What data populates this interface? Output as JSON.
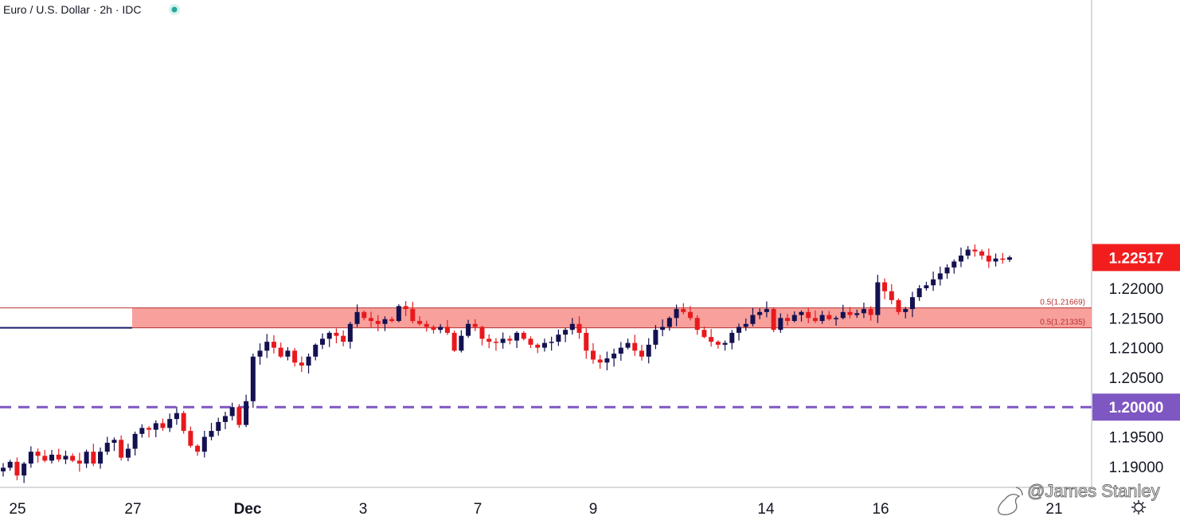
{
  "header": {
    "title": "Euro / U.S. Dollar · 2h · IDC"
  },
  "watermark": "@James Stanley",
  "colors": {
    "up": "#131150",
    "down": "#e8191d",
    "zone_fill": "#f7a09c",
    "zone_line": "#b83232",
    "level": "#7e57c2",
    "price": "#f21e1e"
  },
  "chart_data": {
    "type": "candlestick",
    "title": "Euro / U.S. Dollar · 2h · IDC",
    "ylim": [
      1.1865,
      1.2685
    ],
    "y_ticks": [
      "1.19000",
      "1.19500",
      "1.20000",
      "1.20500",
      "1.21000",
      "1.21500",
      "1.22000"
    ],
    "x_ticks": [
      {
        "label": "25",
        "bold": false
      },
      {
        "label": "27",
        "bold": false
      },
      {
        "label": "Dec",
        "bold": true
      },
      {
        "label": "3",
        "bold": false
      },
      {
        "label": "7",
        "bold": false
      },
      {
        "label": "9",
        "bold": false
      },
      {
        "label": "14",
        "bold": false
      },
      {
        "label": "16",
        "bold": false
      },
      {
        "label": "21",
        "bold": false
      }
    ],
    "price_badge": {
      "label": "1.22517",
      "value": 1.22517
    },
    "level_badge": {
      "label": "1.20000",
      "value": 1.2
    },
    "zone": {
      "upper_label": "0.5(1.21669)",
      "upper": 1.21669,
      "lower_label": "0.5(1.21335)",
      "lower": 1.21335
    },
    "price_path": [
      1.1898,
      1.1908,
      1.1885,
      1.1905,
      1.1925,
      1.1918,
      1.191,
      1.192,
      1.1912,
      1.1918,
      1.191,
      1.1905,
      1.1925,
      1.1905,
      1.1925,
      1.194,
      1.1945,
      1.1915,
      1.193,
      1.1955,
      1.1965,
      1.1962,
      1.1973,
      1.1965,
      1.198,
      1.199,
      1.196,
      1.1935,
      1.1925,
      1.195,
      1.196,
      1.1975,
      1.1985,
      1.2,
      1.197,
      1.201,
      1.2085,
      1.2095,
      1.211,
      1.21,
      1.2085,
      1.2095,
      1.2075,
      1.207,
      1.2085,
      1.2105,
      1.2115,
      1.2125,
      1.212,
      1.211,
      1.214,
      1.216,
      1.215,
      1.2145,
      1.214,
      1.2148,
      1.2145,
      1.217,
      1.2165,
      1.2145,
      1.214,
      1.2135,
      1.213,
      1.2135,
      1.2125,
      1.2095,
      1.212,
      1.214,
      1.2135,
      1.2115,
      1.211,
      1.2108,
      1.2115,
      1.2112,
      1.2125,
      1.2115,
      1.2105,
      1.21,
      1.2108,
      1.211,
      1.2122,
      1.213,
      1.214,
      1.2125,
      1.2095,
      1.208,
      1.2075,
      1.2082,
      1.209,
      1.21,
      1.2108,
      1.2095,
      1.2085,
      1.2105,
      1.213,
      1.2135,
      1.215,
      1.2165,
      1.216,
      1.215,
      1.213,
      1.2118,
      1.211,
      1.2105,
      1.2108,
      1.2125,
      1.2135,
      1.214,
      1.2155,
      1.216,
      1.2165,
      1.213,
      1.215,
      1.2145,
      1.2155,
      1.216,
      1.215,
      1.2145,
      1.2155,
      1.2148,
      1.215,
      1.216,
      1.2155,
      1.2158,
      1.2165,
      1.2155,
      1.221,
      1.2195,
      1.218,
      1.216,
      1.2165,
      1.2185,
      1.22,
      1.2205,
      1.2215,
      1.2225,
      1.2235,
      1.2245,
      1.2255,
      1.2265,
      1.2262,
      1.2255,
      1.2245,
      1.225,
      1.2248,
      1.2252
    ]
  }
}
